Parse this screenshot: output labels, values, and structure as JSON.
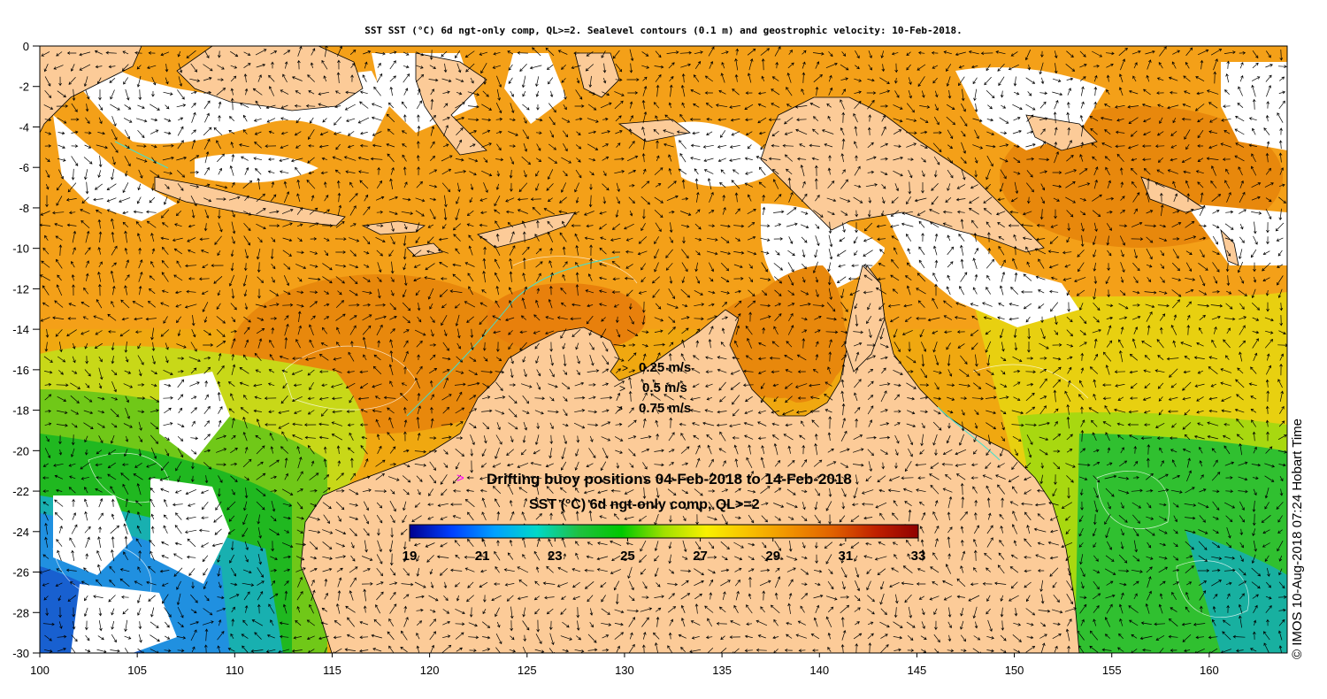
{
  "title": "SST SST (°C) 6d ngt-only comp, QL>=2. Sealevel contours (0.1 m) and geostrophic velocity: 10-Feb-2018.",
  "credit": "© IMOS 10-Aug-2018 07:24 Hobart Time",
  "map": {
    "lon_range": [
      100,
      164
    ],
    "lat_range": [
      -30,
      0
    ],
    "x_ticks": [
      "100",
      "105",
      "110",
      "115",
      "120",
      "125",
      "130",
      "135",
      "140",
      "145",
      "150",
      "155",
      "160"
    ],
    "y_ticks": [
      "0",
      "-2",
      "-4",
      "-6",
      "-8",
      "-10",
      "-12",
      "-14",
      "-16",
      "-18",
      "-20",
      "-22",
      "-24",
      "-26",
      "-28",
      "-30"
    ],
    "colors": {
      "land": "#fccb98",
      "ocean_warm": "#f0a010",
      "ocean_hot": "#e8800c",
      "ocean_cool": "#18b818",
      "ocean_cold": "#1890e8",
      "cloud": "#ffffff",
      "bathy": "#40e0d0"
    }
  },
  "velocity_legend": [
    {
      "label": "0.25 m/s",
      "arrow": ">"
    },
    {
      "label": "0.5 m/s",
      "arrow": ">"
    },
    {
      "label": "0.75 m/s",
      "arrow": ">"
    }
  ],
  "buoy": {
    "marker": ">",
    "text": "Drifting buoy positions 04-Feb-2018 to 14-Feb-2018",
    "color": "#ff00ff"
  },
  "colorbar": {
    "title": "SST (°C) 6d ngt-only comp, QL>=2",
    "range": [
      19,
      33
    ],
    "ticks": [
      "19",
      "21",
      "23",
      "25",
      "27",
      "29",
      "31",
      "33"
    ],
    "stops": [
      "#00008f",
      "#0040ff",
      "#00a0ff",
      "#00d8c8",
      "#20c040",
      "#00c800",
      "#a0e000",
      "#f8f000",
      "#f8c000",
      "#f09000",
      "#e06000",
      "#c02000",
      "#8f0000"
    ]
  }
}
